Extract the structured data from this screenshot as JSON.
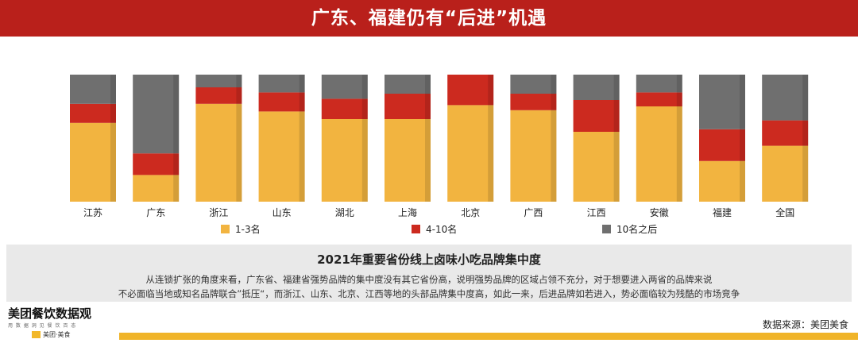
{
  "title": "广东、福建仍有“后进”机遇",
  "chart_data": {
    "type": "bar",
    "stacked": true,
    "categories": [
      "江苏",
      "广东",
      "浙江",
      "山东",
      "湖北",
      "上海",
      "北京",
      "广西",
      "江西",
      "安徽",
      "福建",
      "全国"
    ],
    "series": [
      {
        "name": "1-3名",
        "color": "#f2b440",
        "values": [
          62,
          21,
          77,
          71,
          65,
          65,
          76,
          72,
          55,
          75,
          32,
          44
        ]
      },
      {
        "name": "4-10名",
        "color": "#cc2a1f",
        "values": [
          15,
          17,
          13,
          15,
          16,
          20,
          24,
          13,
          25,
          11,
          25,
          20
        ]
      },
      {
        "name": "10名之后",
        "color": "#6f6f6f",
        "values": [
          23,
          62,
          10,
          14,
          19,
          15,
          0,
          15,
          20,
          14,
          43,
          36
        ]
      }
    ],
    "ylim": [
      0,
      100
    ],
    "legend_position": "bottom"
  },
  "panel": {
    "title": "2021年重要省份线上卤味小吃品牌集中度",
    "line1": "从连锁扩张的角度来看，广东省、福建省强势品牌的集中度没有其它省份高，说明强势品牌的区域占领不充分，对于想要进入两省的品牌来说",
    "line2": "不必面临当地或知名品牌联合”抵压“，而浙江、山东、北京、江西等地的头部品牌集中度高，如此一来，后进品牌如若进入，势必面临较为残酷的市场竞争"
  },
  "footer": {
    "logo": "美团餐饮数据观",
    "logo_sub": "用 数 据 洞 见 餐 饮 百 态",
    "badge": "美团·美食",
    "source": "数据来源：美团美食"
  }
}
